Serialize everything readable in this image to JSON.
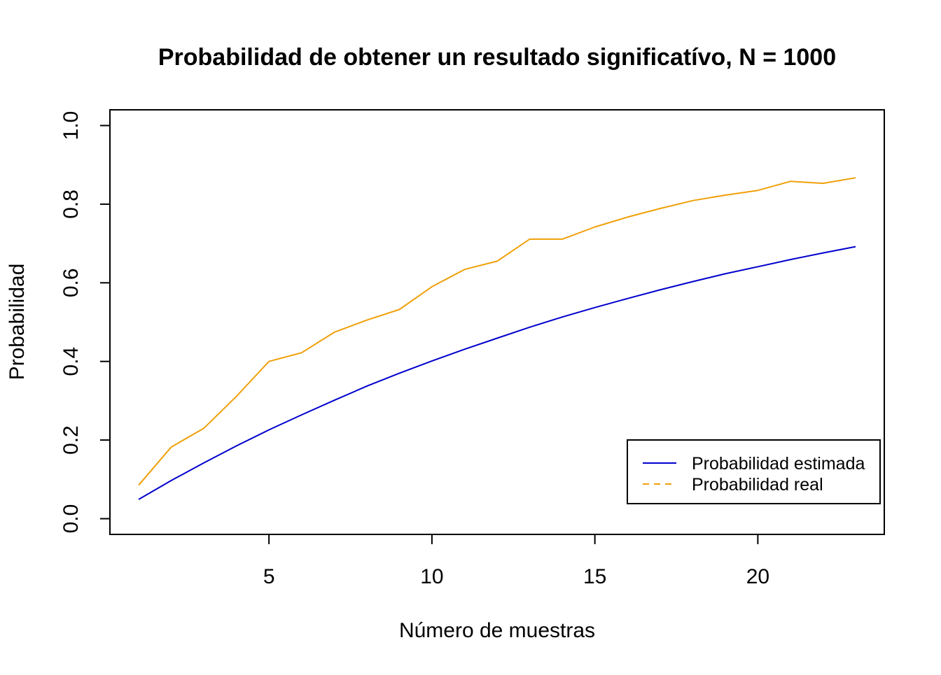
{
  "chart_data": {
    "type": "line",
    "title": "Probabilidad de obtener un resultado significatívo, N =  1000",
    "xlabel": "Número de muestras",
    "ylabel": "Probabilidad",
    "xlim": [
      0.12,
      23.88
    ],
    "ylim": [
      -0.04,
      1.04
    ],
    "x_ticks": [
      5,
      10,
      15,
      20
    ],
    "x_tick_labels": [
      "5",
      "10",
      "15",
      "20"
    ],
    "y_ticks": [
      0.0,
      0.2,
      0.4,
      0.6,
      0.8,
      1.0
    ],
    "y_tick_labels": [
      "0.0",
      "0.2",
      "0.4",
      "0.6",
      "0.8",
      "1.0"
    ],
    "grid": false,
    "legend_position": "bottom-right",
    "x": [
      1,
      2,
      3,
      4,
      5,
      6,
      7,
      8,
      9,
      10,
      11,
      12,
      13,
      14,
      15,
      16,
      17,
      18,
      19,
      20,
      21,
      22,
      23
    ],
    "series": [
      {
        "name": "Probabilidad estimada",
        "color": "#0000CD",
        "line_style": "solid",
        "values": [
          0.049,
          0.097,
          0.142,
          0.185,
          0.226,
          0.264,
          0.301,
          0.337,
          0.37,
          0.401,
          0.431,
          0.459,
          0.487,
          0.513,
          0.537,
          0.56,
          0.582,
          0.603,
          0.623,
          0.641,
          0.659,
          0.676,
          0.692
        ]
      },
      {
        "name": "Probabilidad real",
        "color": "#F0A00A",
        "line_style": "dashed",
        "values": [
          0.085,
          0.182,
          0.23,
          0.311,
          0.4,
          0.422,
          0.474,
          0.505,
          0.532,
          0.59,
          0.634,
          0.655,
          0.711,
          0.711,
          0.742,
          0.767,
          0.789,
          0.809,
          0.823,
          0.835,
          0.858,
          0.853,
          0.867
        ]
      }
    ]
  }
}
